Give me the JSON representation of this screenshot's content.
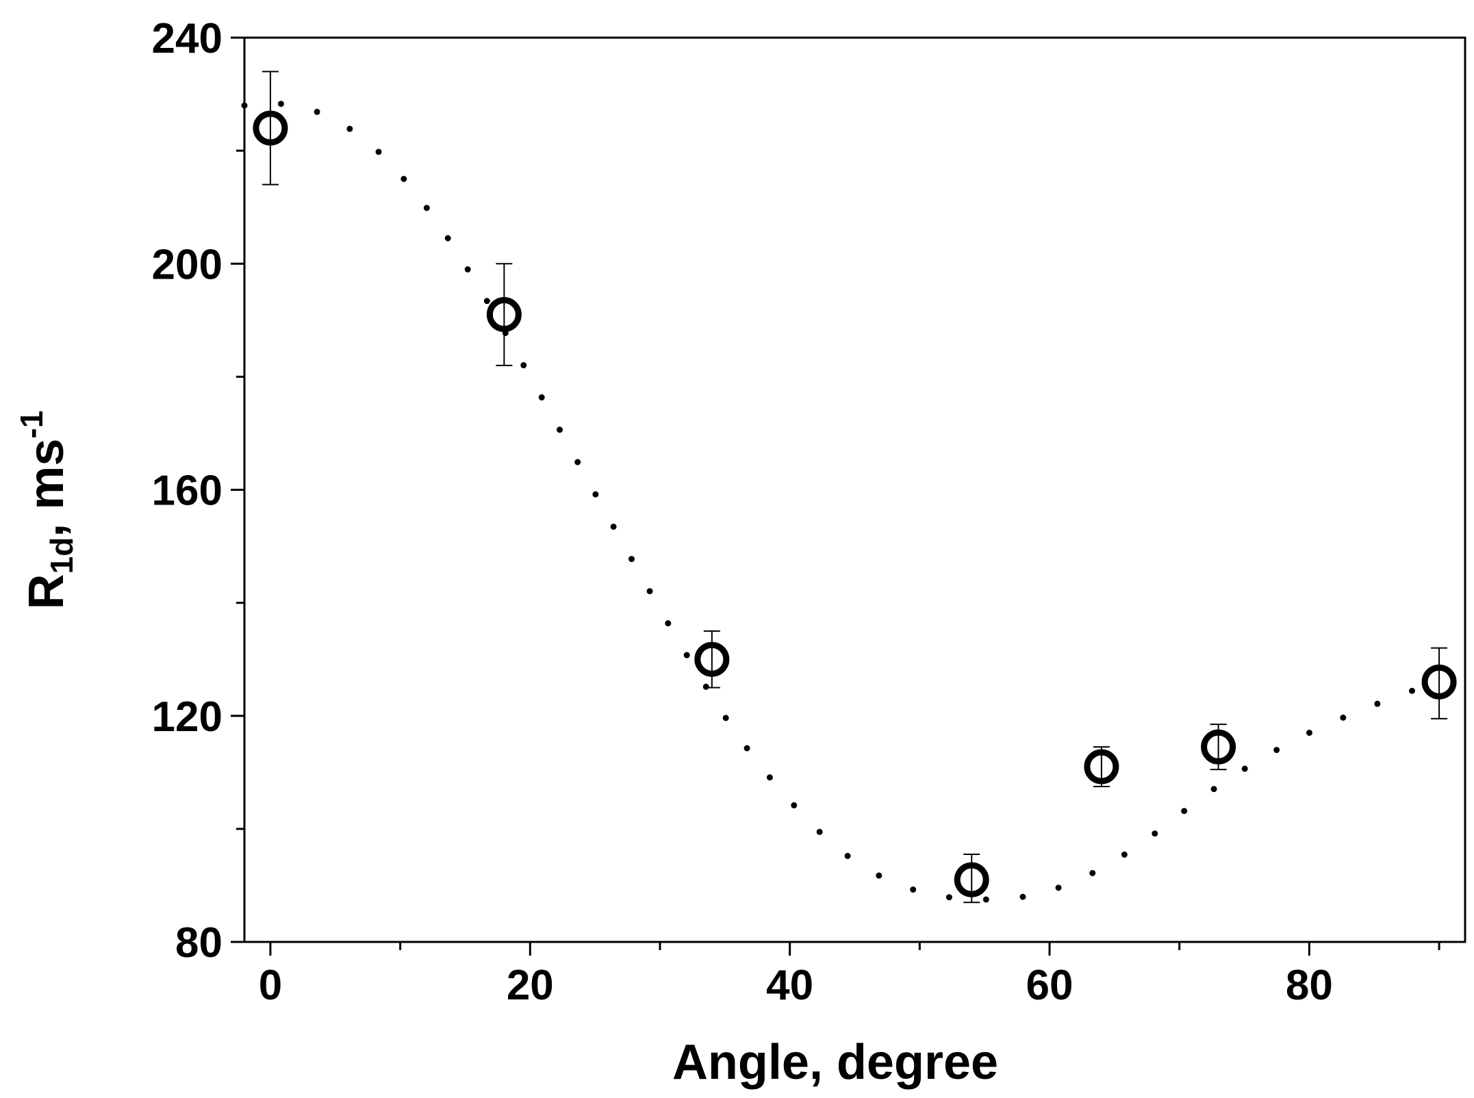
{
  "chart_data": {
    "type": "scatter",
    "xlabel": "Angle, degree",
    "ylabel": {
      "base": "R",
      "sub": "1d",
      "rest": ", ms",
      "sup": "-1"
    },
    "xlim": [
      -2,
      92
    ],
    "ylim": [
      80,
      240
    ],
    "xticks": [
      0,
      20,
      40,
      60,
      80
    ],
    "yticks": [
      80,
      120,
      160,
      200,
      240
    ],
    "grid": false,
    "legend": "none",
    "series": [
      {
        "marker": "open-circle",
        "x": [
          0,
          18,
          34,
          54,
          64,
          73,
          90
        ],
        "y": [
          224,
          191,
          130,
          91,
          111,
          114.5,
          126
        ],
        "y_err_upper": [
          234,
          200,
          135,
          95.5,
          114.5,
          118.5,
          132
        ],
        "y_err_lower": [
          214,
          182,
          125,
          87,
          107.5,
          110.5,
          119.5
        ]
      }
    ],
    "fit": {
      "style": "dotted",
      "x": [
        -2,
        0,
        4,
        8,
        12,
        16,
        20,
        24,
        28,
        32,
        36,
        40,
        44,
        48,
        52,
        56,
        58,
        60,
        64,
        68,
        72,
        76,
        80,
        84,
        88,
        90
      ],
      "y": [
        228,
        228.5,
        226.5,
        220.5,
        210,
        196,
        180,
        163.5,
        147,
        131,
        116.5,
        105,
        96,
        90.5,
        88,
        87.5,
        88,
        89,
        93,
        99,
        106,
        112,
        117,
        121,
        124.5,
        126
      ]
    }
  }
}
